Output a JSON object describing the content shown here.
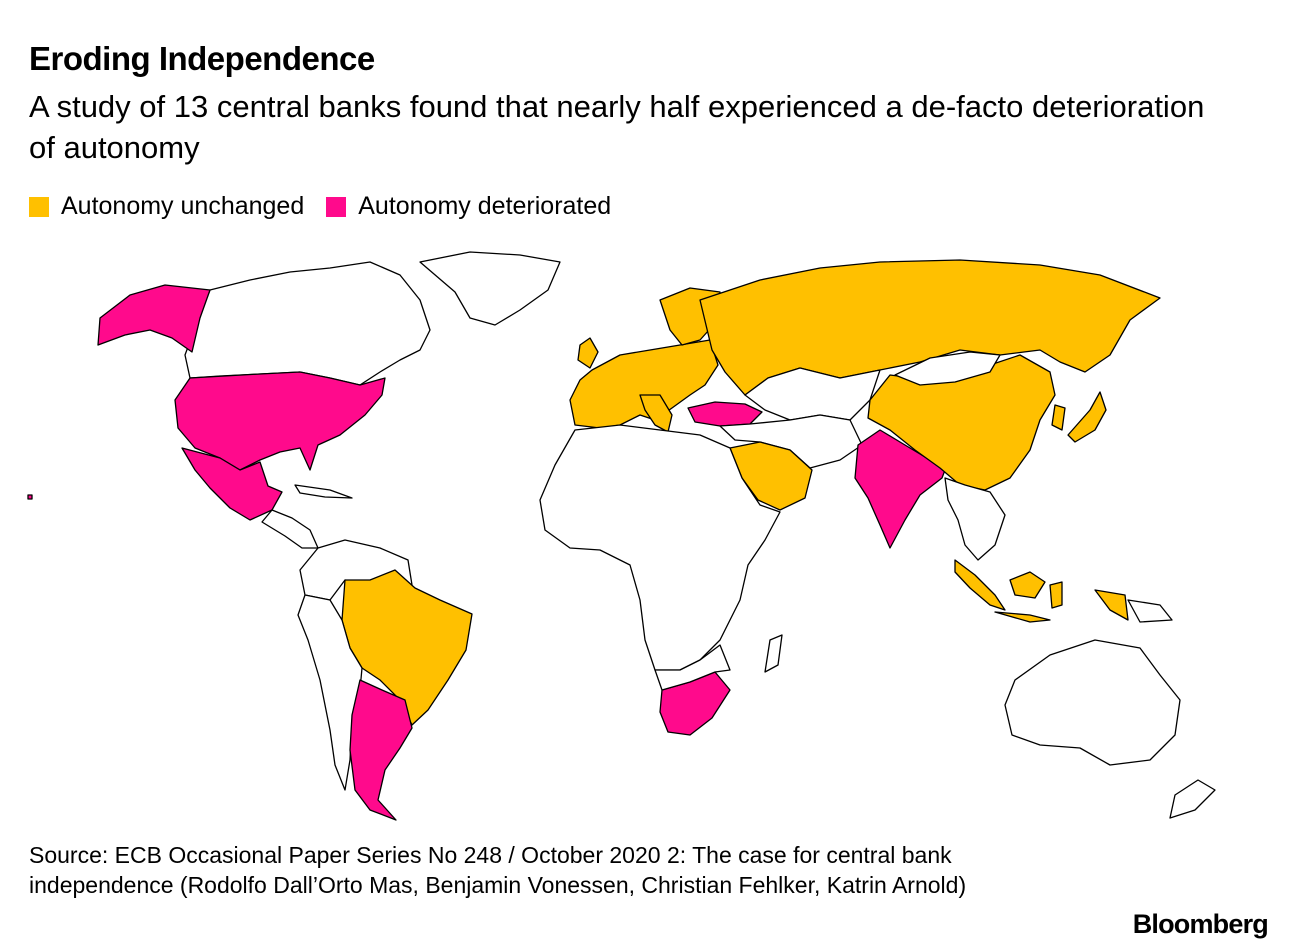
{
  "title": "Eroding Independence",
  "subtitle": "A study of 13 central banks found that nearly half experienced a de-facto deterioration of autonomy",
  "legend": [
    {
      "label": "Autonomy unchanged",
      "color": "#FFC000"
    },
    {
      "label": "Autonomy deteriorated",
      "color": "#FF0A8C"
    }
  ],
  "colors": {
    "unchanged": "#FFC000",
    "deteriorated": "#FF0A8C",
    "other": "#FFFFFF",
    "border": "#000000"
  },
  "source": "Source: ECB Occasional Paper Series No 248 / October 2020 2: The case for central bank independence (Rodolfo Dall’Orto Mas, Benjamin Vonessen, Christian Fehlker, Katrin Arnold)",
  "logo": "Bloomberg"
}
